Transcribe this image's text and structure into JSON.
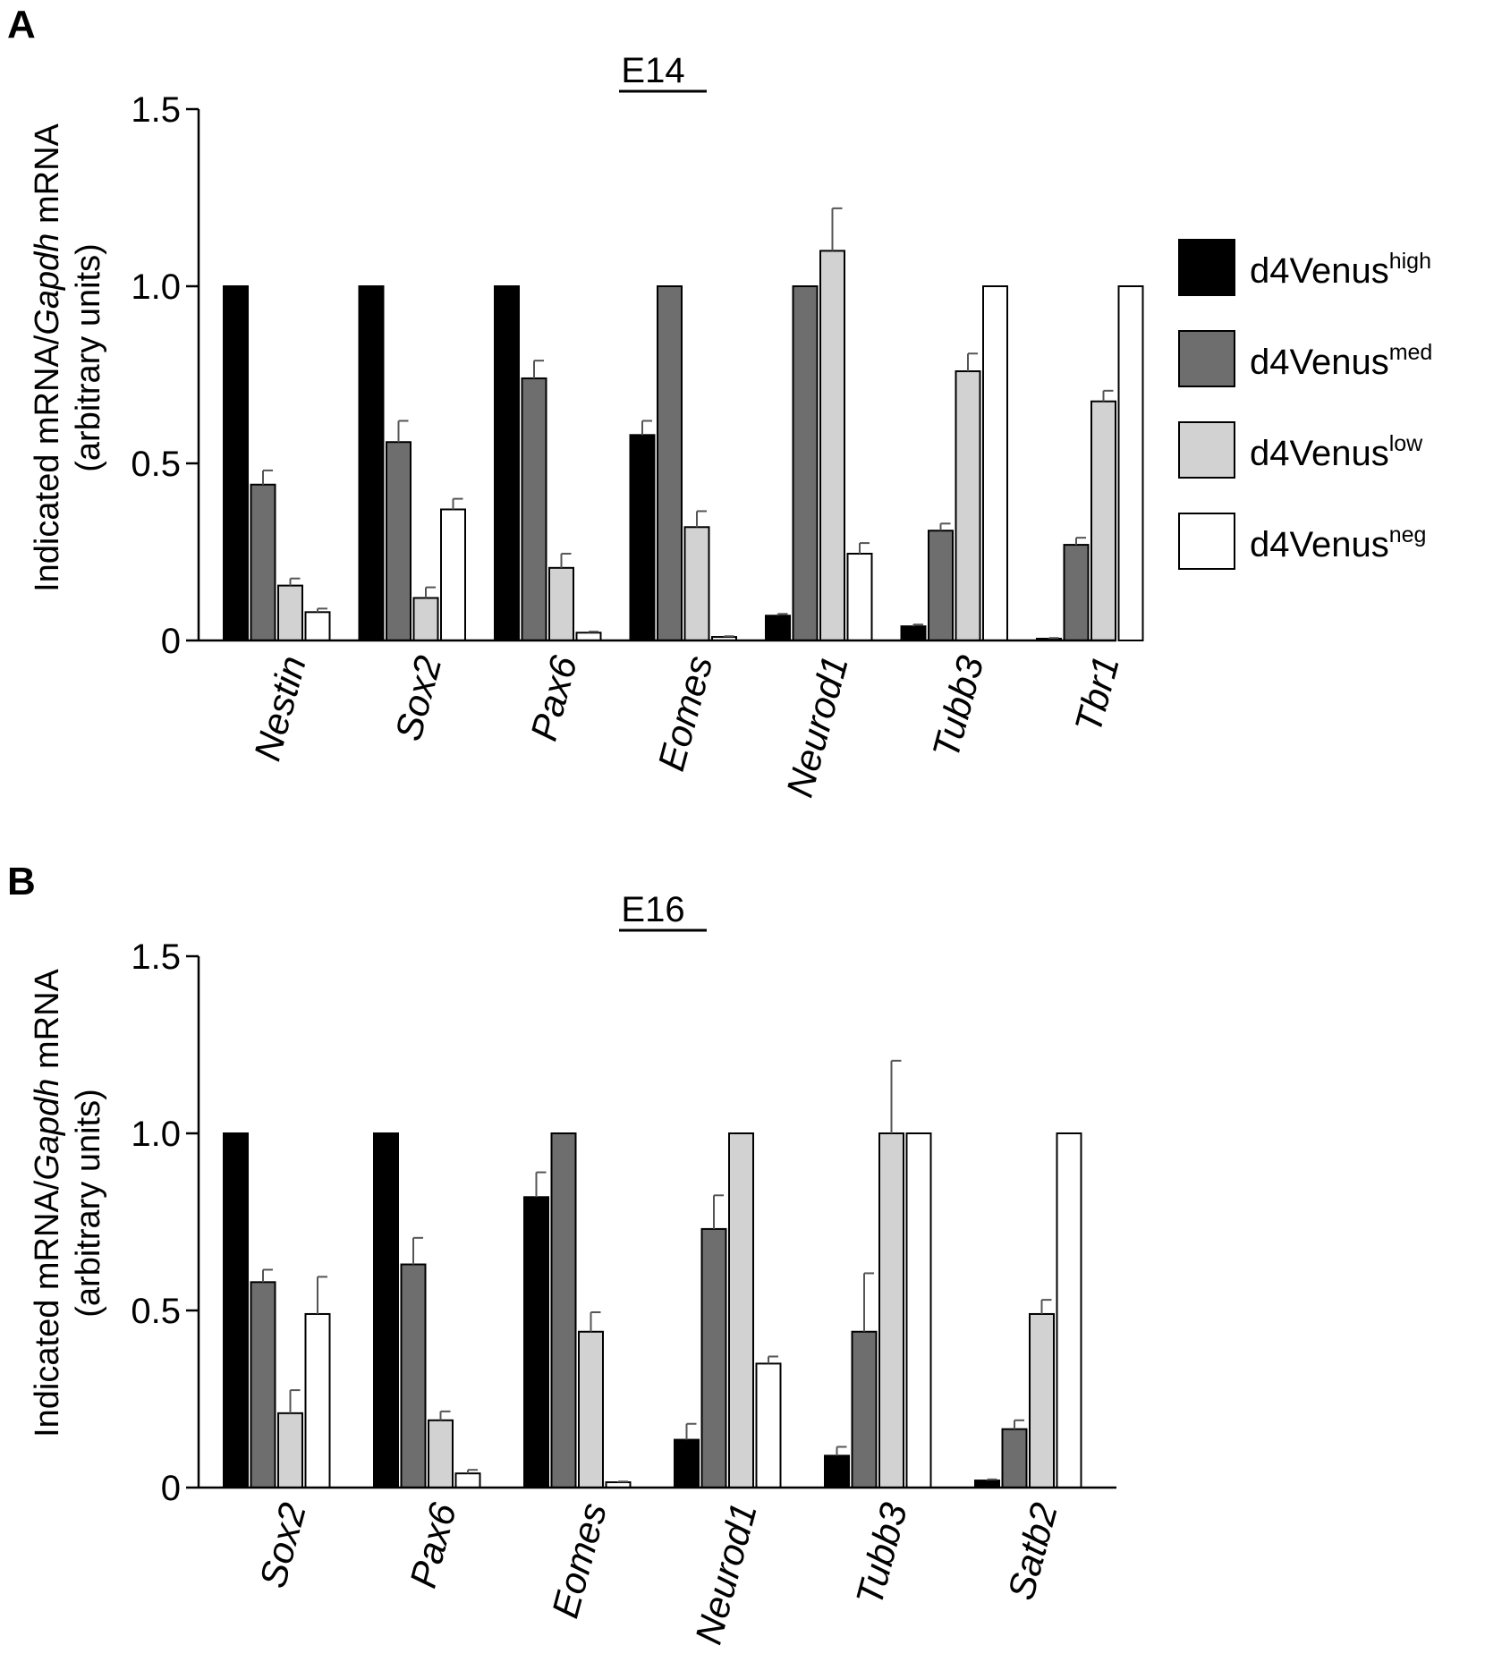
{
  "figure": {
    "panel_labels": [
      "A",
      "B"
    ]
  },
  "legend": {
    "entries": [
      {
        "base": "d4Venus",
        "sup": "high",
        "color": "#000000"
      },
      {
        "base": "d4Venus",
        "sup": "med",
        "color": "#6e6e6e"
      },
      {
        "base": "d4Venus",
        "sup": "low",
        "color": "#d2d2d2"
      },
      {
        "base": "d4Venus",
        "sup": "neg",
        "color": "#ffffff"
      }
    ]
  },
  "chart_data": [
    {
      "type": "bar",
      "panel": "A",
      "title": "E14",
      "ylabel_line1_pre": "Indicated mRNA/",
      "ylabel_line1_italic": "Gapdh",
      "ylabel_line1_post": " mRNA",
      "ylabel_line2": "(arbitrary units)",
      "ylim": [
        0,
        1.5
      ],
      "yticks": [
        "0",
        "0.5",
        "1.0",
        "1.5"
      ],
      "ytick_values": [
        0,
        0.5,
        1.0,
        1.5
      ],
      "categories": [
        "Nestin",
        "Sox2",
        "Pax6",
        "Eomes",
        "Neurod1",
        "Tubb3",
        "Tbr1"
      ],
      "series": [
        {
          "name": "d4Venus high",
          "values": [
            1.0,
            1.0,
            1.0,
            0.58,
            0.07,
            0.04,
            0.005
          ],
          "errors": [
            0,
            0,
            0,
            0.04,
            0.005,
            0.005,
            0.002
          ]
        },
        {
          "name": "d4Venus med",
          "values": [
            0.44,
            0.56,
            0.74,
            1.0,
            1.0,
            0.31,
            0.27
          ],
          "errors": [
            0.04,
            0.06,
            0.05,
            0,
            0,
            0.02,
            0.02
          ]
        },
        {
          "name": "d4Venus low",
          "values": [
            0.155,
            0.12,
            0.205,
            0.32,
            1.1,
            0.76,
            0.675
          ],
          "errors": [
            0.02,
            0.03,
            0.04,
            0.045,
            0.12,
            0.05,
            0.03
          ]
        },
        {
          "name": "d4Venus neg",
          "values": [
            0.08,
            0.37,
            0.022,
            0.01,
            0.245,
            1.0,
            1.0
          ],
          "errors": [
            0.01,
            0.03,
            0.003,
            0.002,
            0.03,
            0,
            0
          ]
        }
      ]
    },
    {
      "type": "bar",
      "panel": "B",
      "title": "E16",
      "ylabel_line1_pre": "Indicated mRNA/",
      "ylabel_line1_italic": "Gapdh",
      "ylabel_line1_post": " mRNA",
      "ylabel_line2": "(arbitrary units)",
      "ylim": [
        0,
        1.5
      ],
      "yticks": [
        "0",
        "0.5",
        "1.0",
        "1.5"
      ],
      "ytick_values": [
        0,
        0.5,
        1.0,
        1.5
      ],
      "categories": [
        "Sox2",
        "Pax6",
        "Eomes",
        "Neurod1",
        "Tubb3",
        "Satb2"
      ],
      "series": [
        {
          "name": "d4Venus high",
          "values": [
            1.0,
            1.0,
            0.82,
            0.135,
            0.09,
            0.02
          ],
          "errors": [
            0,
            0,
            0.07,
            0.045,
            0.025,
            0.003
          ]
        },
        {
          "name": "d4Venus med",
          "values": [
            0.58,
            0.63,
            1.0,
            0.73,
            0.44,
            0.165
          ],
          "errors": [
            0.035,
            0.075,
            0,
            0.095,
            0.165,
            0.025
          ]
        },
        {
          "name": "d4Venus low",
          "values": [
            0.21,
            0.19,
            0.44,
            1.0,
            1.0,
            0.49
          ],
          "errors": [
            0.065,
            0.025,
            0.055,
            0,
            0.205,
            0.04
          ]
        },
        {
          "name": "d4Venus neg",
          "values": [
            0.49,
            0.04,
            0.015,
            0.35,
            1.0,
            1.0
          ],
          "errors": [
            0.105,
            0.01,
            0.002,
            0.02,
            0,
            0
          ]
        }
      ]
    }
  ]
}
